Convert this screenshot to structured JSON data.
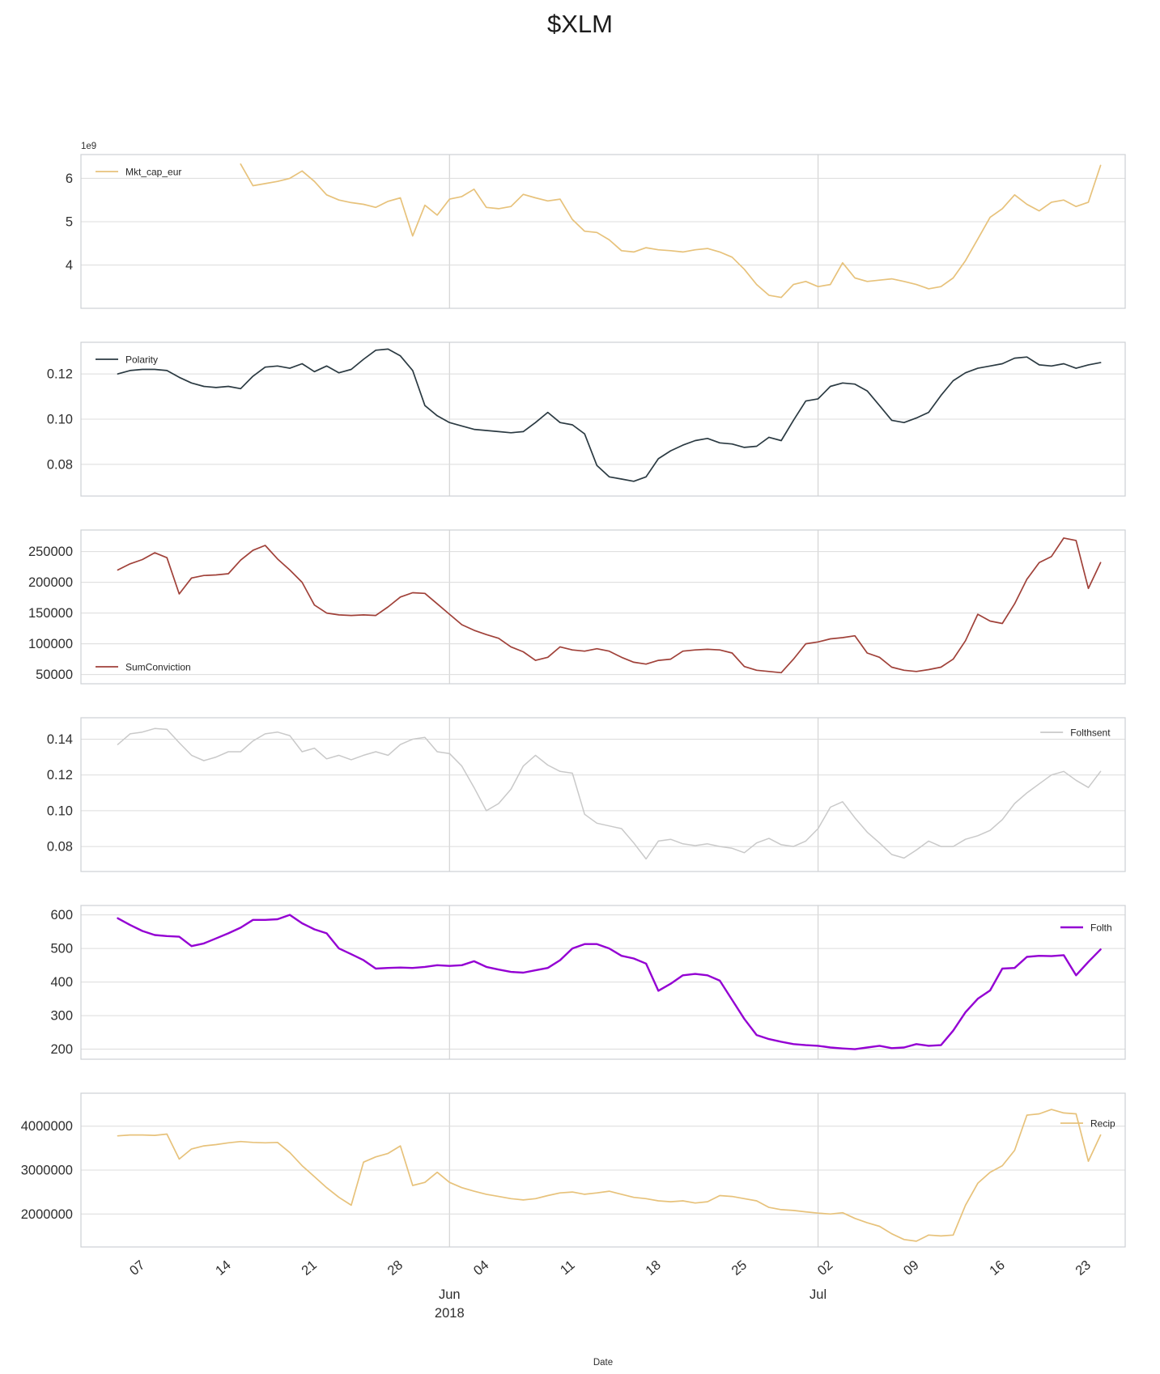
{
  "chart_data": {
    "type": "line",
    "title": "$XLM",
    "xlabel": "Date",
    "grid": true,
    "background": "#ffffff",
    "gridline_color": "#dcdcdc",
    "axis_edge_color": "#cdd0d4",
    "text_color": "#262626",
    "x_axis": {
      "axis_label": "Date",
      "domain_start_date": "2018-05-02",
      "domain_days": 85,
      "tick_labels": [
        "07",
        "14",
        "21",
        "28",
        "04",
        "11",
        "18",
        "25",
        "02",
        "09",
        "16",
        "23"
      ],
      "tick_days": [
        5,
        12,
        19,
        26,
        33,
        40,
        47,
        54,
        61,
        68,
        75,
        82
      ],
      "gridline_days": [
        30,
        60
      ],
      "month_labels": [
        {
          "text": "Jun",
          "year": "2018",
          "day": 30
        },
        {
          "text": "Jul",
          "year": "",
          "day": 60
        }
      ]
    },
    "subplots": [
      {
        "label": "Mkt_cap_eur",
        "color": "#e7c27b",
        "line_width": 1.7,
        "legend": "top-left",
        "offset_text": "1e9",
        "ylim": [
          3.0,
          6.55
        ],
        "yticks": [
          4,
          5,
          6
        ],
        "ytick_labels": [
          "4",
          "5",
          "6"
        ],
        "value_scale": 1000000000,
        "start_date": "2018-05-15",
        "start_day": 13,
        "values": [
          6.33,
          5.83,
          5.88,
          5.93,
          6.0,
          6.17,
          5.93,
          5.62,
          5.5,
          5.44,
          5.4,
          5.33,
          5.47,
          5.55,
          4.67,
          5.38,
          5.15,
          5.52,
          5.58,
          5.75,
          5.33,
          5.3,
          5.35,
          5.63,
          5.55,
          5.48,
          5.52,
          5.05,
          4.78,
          4.75,
          4.58,
          4.33,
          4.3,
          4.4,
          4.35,
          4.33,
          4.3,
          4.35,
          4.38,
          4.3,
          4.18,
          3.9,
          3.55,
          3.3,
          3.25,
          3.55,
          3.62,
          3.5,
          3.55,
          4.05,
          3.7,
          3.62,
          3.65,
          3.68,
          3.62,
          3.55,
          3.45,
          3.5,
          3.7,
          4.1,
          4.6,
          5.1,
          5.3,
          5.62,
          5.4,
          5.25,
          5.45,
          5.5,
          5.35,
          5.45,
          6.3
        ]
      },
      {
        "label": "Polarity",
        "color": "#2b3a42",
        "line_width": 1.7,
        "legend": "top-left",
        "offset_text": "",
        "ylim": [
          0.066,
          0.134
        ],
        "yticks": [
          0.08,
          0.1,
          0.12
        ],
        "ytick_labels": [
          "0.08",
          "0.10",
          "0.12"
        ],
        "value_scale": 1,
        "start_date": "2018-05-05",
        "start_day": 3,
        "values": [
          0.12,
          0.1215,
          0.122,
          0.122,
          0.1215,
          0.1185,
          0.116,
          0.1145,
          0.114,
          0.1145,
          0.1135,
          0.119,
          0.123,
          0.1235,
          0.1225,
          0.1245,
          0.121,
          0.1235,
          0.1205,
          0.122,
          0.1265,
          0.1305,
          0.131,
          0.128,
          0.1215,
          0.106,
          0.1015,
          0.0985,
          0.097,
          0.0955,
          0.095,
          0.0945,
          0.094,
          0.0945,
          0.0985,
          0.103,
          0.0985,
          0.0975,
          0.0935,
          0.0795,
          0.0745,
          0.0735,
          0.0725,
          0.0745,
          0.0825,
          0.086,
          0.0885,
          0.0905,
          0.0915,
          0.0895,
          0.089,
          0.0875,
          0.088,
          0.092,
          0.0905,
          0.0995,
          0.108,
          0.109,
          0.1145,
          0.116,
          0.1155,
          0.1125,
          0.106,
          0.0995,
          0.0985,
          0.1005,
          0.103,
          0.1105,
          0.117,
          0.1205,
          0.1225,
          0.1235,
          0.1245,
          0.127,
          0.1275,
          0.124,
          0.1235,
          0.1245,
          0.1225,
          0.124,
          0.125
        ]
      },
      {
        "label": "SumConviction",
        "color": "#a04139",
        "line_width": 1.7,
        "legend": "bottom-left",
        "offset_text": "",
        "ylim": [
          35000,
          285000
        ],
        "yticks": [
          50000,
          100000,
          150000,
          200000,
          250000
        ],
        "ytick_labels": [
          "50000",
          "100000",
          "150000",
          "200000",
          "250000"
        ],
        "value_scale": 1,
        "start_date": "2018-05-05",
        "start_day": 3,
        "values": [
          220000,
          230000,
          237000,
          248000,
          240000,
          181000,
          207000,
          211000,
          212000,
          214000,
          236000,
          252000,
          260000,
          238000,
          220000,
          200000,
          163000,
          150000,
          147000,
          146000,
          147000,
          146000,
          160000,
          176000,
          183000,
          182000,
          165000,
          148000,
          131000,
          122000,
          115000,
          109000,
          95000,
          87000,
          73000,
          78000,
          95000,
          90000,
          88000,
          92000,
          88000,
          78000,
          70000,
          67000,
          73000,
          75000,
          88000,
          90000,
          91000,
          90000,
          85000,
          63000,
          57000,
          55000,
          53000,
          75000,
          100000,
          103000,
          108000,
          110000,
          113000,
          85000,
          78000,
          62000,
          57000,
          55000,
          58000,
          62000,
          75000,
          105000,
          148000,
          137000,
          133000,
          165000,
          205000,
          232000,
          242000,
          272000,
          268000,
          190000,
          232000
        ]
      },
      {
        "label": "Folthsent",
        "color": "#c9c9c9",
        "line_width": 1.5,
        "legend": "top-right",
        "offset_text": "",
        "ylim": [
          0.066,
          0.152
        ],
        "yticks": [
          0.08,
          0.1,
          0.12,
          0.14
        ],
        "ytick_labels": [
          "0.08",
          "0.10",
          "0.12",
          "0.14"
        ],
        "value_scale": 1,
        "start_date": "2018-05-05",
        "start_day": 3,
        "values": [
          0.137,
          0.143,
          0.144,
          0.146,
          0.1455,
          0.138,
          0.131,
          0.128,
          0.13,
          0.133,
          0.133,
          0.139,
          0.143,
          0.144,
          0.142,
          0.133,
          0.135,
          0.129,
          0.131,
          0.1285,
          0.131,
          0.133,
          0.131,
          0.137,
          0.14,
          0.141,
          0.133,
          0.132,
          0.125,
          0.113,
          0.1,
          0.104,
          0.112,
          0.125,
          0.131,
          0.1255,
          0.122,
          0.121,
          0.098,
          0.093,
          0.0915,
          0.09,
          0.082,
          0.073,
          0.083,
          0.084,
          0.0815,
          0.0805,
          0.0815,
          0.08,
          0.079,
          0.0765,
          0.082,
          0.0845,
          0.081,
          0.08,
          0.083,
          0.09,
          0.102,
          0.105,
          0.096,
          0.088,
          0.082,
          0.0755,
          0.0735,
          0.078,
          0.083,
          0.08,
          0.08,
          0.084,
          0.086,
          0.089,
          0.095,
          0.104,
          0.11,
          0.115,
          0.12,
          0.122,
          0.117,
          0.113,
          0.122
        ]
      },
      {
        "label": "Folth",
        "color": "#9400d3",
        "line_width": 2.4,
        "legend": "top-right",
        "offset_text": "",
        "ylim": [
          170,
          628
        ],
        "yticks": [
          200,
          300,
          400,
          500,
          600
        ],
        "ytick_labels": [
          "200",
          "300",
          "400",
          "500",
          "600"
        ],
        "value_scale": 1,
        "start_date": "2018-05-05",
        "start_day": 3,
        "values": [
          590,
          570,
          552,
          540,
          537,
          535,
          507,
          515,
          530,
          545,
          562,
          585,
          585,
          587,
          600,
          575,
          557,
          545,
          500,
          483,
          465,
          440,
          442,
          443,
          442,
          445,
          450,
          448,
          450,
          462,
          445,
          437,
          430,
          428,
          435,
          442,
          465,
          500,
          513,
          513,
          500,
          478,
          470,
          455,
          374,
          395,
          420,
          424,
          420,
          404,
          347,
          290,
          242,
          230,
          222,
          215,
          212,
          210,
          205,
          202,
          200,
          205,
          210,
          203,
          205,
          215,
          210,
          212,
          255,
          310,
          350,
          375,
          440,
          442,
          475,
          478,
          477,
          480,
          420,
          460,
          497
        ]
      },
      {
        "label": "Recip",
        "color": "#e7c27b",
        "line_width": 1.7,
        "legend": "top-right",
        "offset_text": "",
        "ylim": [
          1250000,
          4750000
        ],
        "yticks": [
          2000000,
          3000000,
          4000000
        ],
        "ytick_labels": [
          "2000000",
          "3000000",
          "4000000"
        ],
        "value_scale": 1,
        "start_date": "2018-05-05",
        "start_day": 3,
        "values": [
          3780000,
          3800000,
          3800000,
          3790000,
          3820000,
          3250000,
          3480000,
          3550000,
          3580000,
          3620000,
          3650000,
          3630000,
          3620000,
          3630000,
          3400000,
          3100000,
          2850000,
          2600000,
          2380000,
          2200000,
          3180000,
          3300000,
          3380000,
          3550000,
          2650000,
          2720000,
          2950000,
          2720000,
          2600000,
          2520000,
          2450000,
          2400000,
          2350000,
          2320000,
          2350000,
          2420000,
          2480000,
          2500000,
          2450000,
          2480000,
          2520000,
          2450000,
          2380000,
          2350000,
          2300000,
          2280000,
          2300000,
          2250000,
          2280000,
          2420000,
          2400000,
          2350000,
          2300000,
          2150000,
          2100000,
          2080000,
          2050000,
          2020000,
          2000000,
          2030000,
          1900000,
          1800000,
          1720000,
          1550000,
          1420000,
          1380000,
          1520000,
          1500000,
          1520000,
          2200000,
          2700000,
          2950000,
          3100000,
          3450000,
          4250000,
          4280000,
          4380000,
          4300000,
          4280000,
          3200000,
          3800000
        ]
      }
    ]
  }
}
